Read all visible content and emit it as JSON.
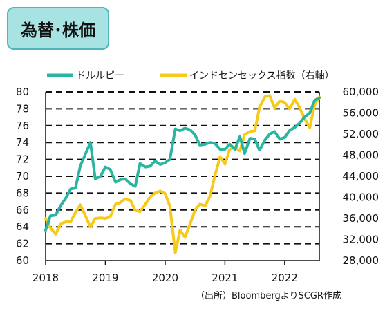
{
  "header": {
    "title": "為替･株価"
  },
  "chart_data": {
    "type": "line",
    "x_range": [
      2018.0,
      2022.58
    ],
    "x_ticks": [
      2018,
      2019,
      2020,
      2021,
      2022
    ],
    "x_tick_labels": [
      "2018",
      "2019",
      "2020",
      "2021",
      "2022"
    ],
    "left_axis": {
      "ylim": [
        60,
        80
      ],
      "ticks": [
        60,
        62,
        64,
        66,
        68,
        70,
        72,
        74,
        76,
        78,
        80
      ],
      "tick_labels": [
        "60",
        "62",
        "64",
        "66",
        "68",
        "70",
        "72",
        "74",
        "76",
        "78",
        "80"
      ]
    },
    "right_axis": {
      "ylim": [
        28000,
        60000
      ],
      "ticks": [
        28000,
        32000,
        36000,
        40000,
        44000,
        48000,
        52000,
        56000,
        60000
      ],
      "tick_labels": [
        "28,000",
        "32,000",
        "36,000",
        "40,000",
        "44,000",
        "48,000",
        "52,000",
        "56,000",
        "60,000"
      ]
    },
    "grid": "dashed-horizontal",
    "legend_position": "top",
    "colors": {
      "usd_inr": "#2ab5a0",
      "sensex": "#f7c918"
    },
    "series": [
      {
        "name": "ドルルピー",
        "axis": "left",
        "x": [
          2018.0,
          2018.08,
          2018.17,
          2018.25,
          2018.33,
          2018.42,
          2018.5,
          2018.58,
          2018.67,
          2018.75,
          2018.83,
          2018.92,
          2019.0,
          2019.08,
          2019.17,
          2019.25,
          2019.33,
          2019.42,
          2019.5,
          2019.58,
          2019.67,
          2019.75,
          2019.83,
          2019.92,
          2020.0,
          2020.08,
          2020.17,
          2020.25,
          2020.33,
          2020.42,
          2020.5,
          2020.58,
          2020.67,
          2020.75,
          2020.83,
          2020.92,
          2021.0,
          2021.08,
          2021.17,
          2021.25,
          2021.33,
          2021.42,
          2021.5,
          2021.58,
          2021.67,
          2021.75,
          2021.83,
          2021.92,
          2022.0,
          2022.08,
          2022.17,
          2022.25,
          2022.33,
          2022.42,
          2022.5,
          2022.58
        ],
        "values": [
          63.6,
          65.3,
          65.4,
          66.5,
          67.3,
          68.5,
          68.6,
          71.2,
          72.7,
          74.0,
          69.7,
          70.0,
          71.1,
          70.8,
          69.3,
          69.6,
          69.7,
          69.1,
          68.8,
          71.5,
          71.1,
          71.2,
          71.8,
          71.4,
          71.6,
          72.0,
          75.6,
          75.4,
          75.7,
          75.5,
          74.9,
          73.7,
          73.8,
          74.0,
          73.9,
          73.2,
          73.2,
          73.8,
          73.2,
          74.7,
          72.7,
          74.5,
          74.4,
          73.1,
          74.3,
          75.0,
          75.3,
          74.4,
          74.6,
          75.4,
          75.8,
          76.3,
          77.0,
          77.5,
          79.0,
          79.3
        ]
      },
      {
        "name": "インドセンセックス指数（右軸）",
        "axis": "right",
        "x": [
          2018.0,
          2018.08,
          2018.17,
          2018.25,
          2018.33,
          2018.42,
          2018.5,
          2018.58,
          2018.67,
          2018.75,
          2018.83,
          2018.92,
          2019.0,
          2019.08,
          2019.17,
          2019.25,
          2019.33,
          2019.42,
          2019.5,
          2019.58,
          2019.67,
          2019.75,
          2019.83,
          2019.92,
          2020.0,
          2020.08,
          2020.17,
          2020.25,
          2020.33,
          2020.42,
          2020.5,
          2020.58,
          2020.67,
          2020.75,
          2020.83,
          2020.92,
          2021.0,
          2021.08,
          2021.17,
          2021.25,
          2021.33,
          2021.42,
          2021.5,
          2021.58,
          2021.67,
          2021.75,
          2021.83,
          2021.92,
          2022.0,
          2022.08,
          2022.17,
          2022.25,
          2022.33,
          2022.42,
          2022.5,
          2022.58
        ],
        "values": [
          36000,
          34200,
          33000,
          35000,
          35300,
          35400,
          37100,
          38600,
          36400,
          34400,
          36000,
          36100,
          36000,
          36300,
          38700,
          39000,
          39700,
          39400,
          37500,
          37300,
          38700,
          40100,
          40800,
          41200,
          40700,
          38300,
          29500,
          33800,
          32400,
          35000,
          37600,
          38700,
          38400,
          40200,
          44000,
          47700,
          46300,
          49100,
          49500,
          48800,
          51900,
          52500,
          52600,
          57100,
          59100,
          59300,
          57000,
          58300,
          58000,
          56800,
          58600,
          57000,
          55000,
          53200,
          57500,
          59000
        ]
      }
    ]
  },
  "source": {
    "text": "（出所）BloombergよりSCGR作成"
  }
}
